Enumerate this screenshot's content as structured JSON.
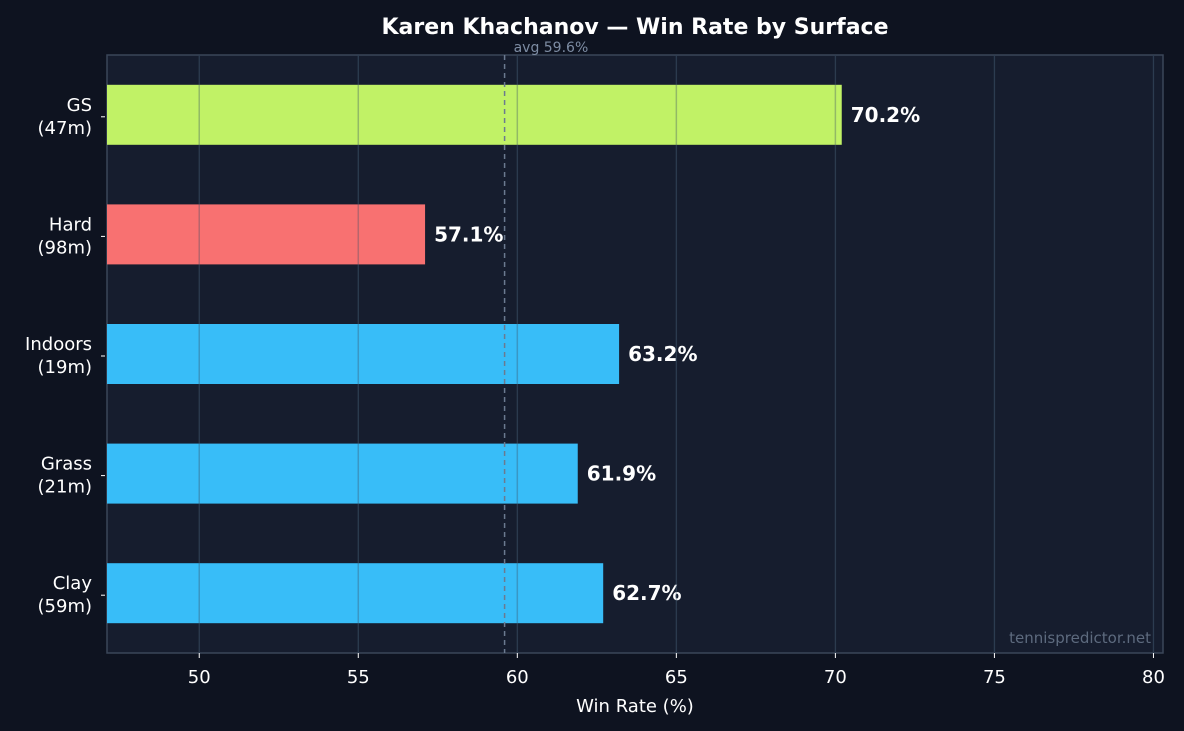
{
  "chart_data": {
    "type": "bar",
    "orientation": "horizontal",
    "title": "Karen Khachanov — Win Rate by Surface",
    "xlabel": "Win Rate (%)",
    "ylabel": "",
    "xlim": [
      47.1,
      80.3
    ],
    "xticks": [
      50,
      55,
      60,
      65,
      70,
      75,
      80
    ],
    "grid": true,
    "categories": [
      {
        "name": "GS",
        "matches": "(47m)",
        "value": 70.2,
        "label": "70.2%",
        "color": "#c1f266"
      },
      {
        "name": "Hard",
        "matches": "(98m)",
        "value": 57.1,
        "label": "57.1%",
        "color": "#f87171"
      },
      {
        "name": "Indoors",
        "matches": "(19m)",
        "value": 63.2,
        "label": "63.2%",
        "color": "#38bdf8"
      },
      {
        "name": "Grass",
        "matches": "(21m)",
        "value": 61.9,
        "label": "61.9%",
        "color": "#38bdf8"
      },
      {
        "name": "Clay",
        "matches": "(59m)",
        "value": 62.7,
        "label": "62.7%",
        "color": "#38bdf8"
      }
    ],
    "average": {
      "value": 59.6,
      "label": "avg 59.6%"
    },
    "watermark": "tennispredictor.net"
  },
  "colors": {
    "background": "#0e1320",
    "plot_background": "#161d2e",
    "grid": "#253347",
    "axis": "#3a4658",
    "avg_line": "#6b7a90"
  }
}
